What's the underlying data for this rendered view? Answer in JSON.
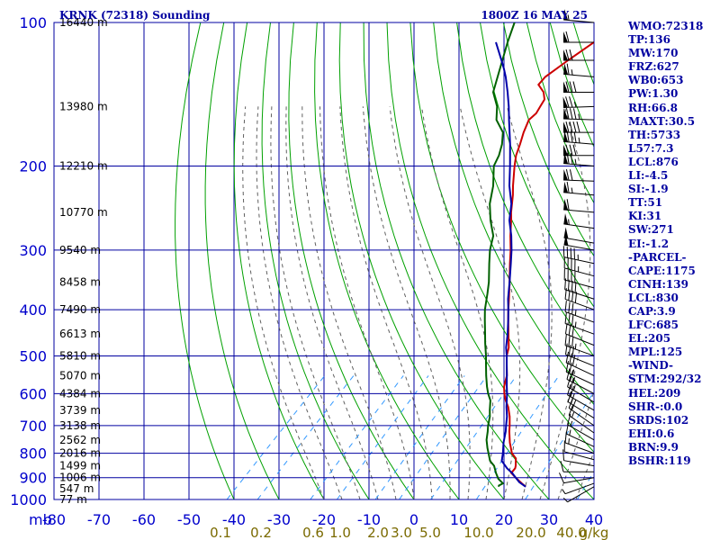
{
  "chart_data": {
    "type": "skew-t log-p sounding",
    "title": "KRNK (72318) Sounding",
    "time": "1800Z 16 MAY 25",
    "pressure_axis_label": "mb",
    "pressure_ticks": [
      100,
      200,
      300,
      400,
      500,
      600,
      700,
      800,
      900,
      1000
    ],
    "pressure_range": [
      100,
      1000
    ],
    "temperature_ticks": [
      -80,
      -70,
      -60,
      -50,
      -40,
      -30,
      -20,
      -10,
      0,
      10,
      20,
      30,
      40
    ],
    "temperature_tick_labels": [
      "-80",
      "-70",
      "-60",
      "-50",
      "-40",
      "-30",
      "-20",
      "-10",
      "0",
      "10",
      "20",
      "30",
      "40"
    ],
    "mixing_ratio_ticks": [
      0.1,
      0.2,
      0.6,
      1.0,
      2.0,
      3.0,
      5.0,
      10.0,
      20.0,
      40.0
    ],
    "mixing_ratio_labels": [
      "0.1",
      "0.2",
      "0.6",
      "1.0",
      "2.0",
      "3.0",
      "5.0",
      "10.0",
      "20.0",
      "40.0"
    ],
    "mixing_ratio_unit": "g/kg",
    "height_labels": [
      {
        "p": 100,
        "label": "16440 m"
      },
      {
        "p": 150,
        "label": "13980 m"
      },
      {
        "p": 200,
        "label": "12210 m"
      },
      {
        "p": 250,
        "label": "10770 m"
      },
      {
        "p": 300,
        "label": "9540 m"
      },
      {
        "p": 350,
        "label": "8458 m"
      },
      {
        "p": 400,
        "label": "7490 m"
      },
      {
        "p": 450,
        "label": "6613 m"
      },
      {
        "p": 500,
        "label": "5810 m"
      },
      {
        "p": 550,
        "label": "5070 m"
      },
      {
        "p": 600,
        "label": "4384 m"
      },
      {
        "p": 650,
        "label": "3739 m"
      },
      {
        "p": 700,
        "label": "3138 m"
      },
      {
        "p": 750,
        "label": "2562 m"
      },
      {
        "p": 800,
        "label": "2016 m"
      },
      {
        "p": 850,
        "label": "1499 m"
      },
      {
        "p": 900,
        "label": "1006 m"
      },
      {
        "p": 950,
        "label": "547 m"
      },
      {
        "p": 1000,
        "label": "77 m"
      }
    ],
    "series": [
      {
        "name": "",
        "color": "#cc0000",
        "points": [
          [
            940,
            22.0
          ],
          [
            925,
            20.4
          ],
          [
            900,
            17.8
          ],
          [
            880,
            15.8
          ],
          [
            860,
            15.6
          ],
          [
            850,
            15.2
          ],
          [
            820,
            13.6
          ],
          [
            800,
            11.6
          ],
          [
            760,
            8.8
          ],
          [
            720,
            6.2
          ],
          [
            700,
            5.0
          ],
          [
            670,
            3.0
          ],
          [
            640,
            0.6
          ],
          [
            620,
            -1.4
          ],
          [
            600,
            -3.2
          ],
          [
            580,
            -4.8
          ],
          [
            560,
            -6.0
          ],
          [
            550,
            -6.6
          ],
          [
            520,
            -9.2
          ],
          [
            500,
            -11.0
          ],
          [
            480,
            -12.4
          ],
          [
            450,
            -15.4
          ],
          [
            420,
            -18.6
          ],
          [
            400,
            -20.8
          ],
          [
            380,
            -23.0
          ],
          [
            350,
            -26.6
          ],
          [
            320,
            -30.6
          ],
          [
            300,
            -33.4
          ],
          [
            280,
            -36.6
          ],
          [
            260,
            -39.8
          ],
          [
            250,
            -41.6
          ],
          [
            230,
            -45.0
          ],
          [
            220,
            -47.0
          ],
          [
            200,
            -51.0
          ],
          [
            190,
            -53.0
          ],
          [
            180,
            -54.6
          ],
          [
            170,
            -56.4
          ],
          [
            160,
            -58.0
          ],
          [
            155,
            -57.8
          ],
          [
            150,
            -58.4
          ],
          [
            145,
            -59.0
          ],
          [
            140,
            -60.8
          ],
          [
            135,
            -63.6
          ],
          [
            130,
            -63.8
          ],
          [
            120,
            -62.4
          ],
          [
            110,
            -60.6
          ],
          [
            100,
            -58.8
          ]
        ]
      },
      {
        "name": "",
        "color": "#006000",
        "points": [
          [
            940,
            16.0
          ],
          [
            935,
            15.8
          ],
          [
            925,
            16.2
          ],
          [
            905,
            14.2
          ],
          [
            880,
            12.4
          ],
          [
            850,
            10.4
          ],
          [
            830,
            8.4
          ],
          [
            800,
            6.4
          ],
          [
            780,
            5.0
          ],
          [
            750,
            3.0
          ],
          [
            720,
            1.4
          ],
          [
            700,
            0.2
          ],
          [
            670,
            -1.4
          ],
          [
            650,
            -2.8
          ],
          [
            620,
            -4.8
          ],
          [
            600,
            -6.8
          ],
          [
            580,
            -8.6
          ],
          [
            550,
            -11.2
          ],
          [
            520,
            -13.8
          ],
          [
            500,
            -15.6
          ],
          [
            470,
            -18.6
          ],
          [
            450,
            -20.6
          ],
          [
            420,
            -23.8
          ],
          [
            400,
            -26.0
          ],
          [
            370,
            -29.0
          ],
          [
            350,
            -31.2
          ],
          [
            320,
            -35.2
          ],
          [
            300,
            -38.0
          ],
          [
            280,
            -40.4
          ],
          [
            260,
            -44.4
          ],
          [
            240,
            -48.2
          ],
          [
            220,
            -51.4
          ],
          [
            200,
            -55.6
          ],
          [
            190,
            -56.8
          ],
          [
            180,
            -58.6
          ],
          [
            170,
            -61.0
          ],
          [
            160,
            -65.2
          ],
          [
            150,
            -68.0
          ],
          [
            140,
            -72.0
          ],
          [
            130,
            -74.4
          ],
          [
            120,
            -77.0
          ],
          [
            110,
            -79.8
          ],
          [
            100,
            -82.6
          ]
        ]
      },
      {
        "name": "",
        "color": "#0000aa",
        "points": [
          [
            940,
            22.0
          ],
          [
            920,
            19.6
          ],
          [
            900,
            17.8
          ],
          [
            880,
            16.0
          ],
          [
            860,
            13.8
          ],
          [
            830,
            11.0
          ],
          [
            800,
            9.6
          ],
          [
            760,
            7.4
          ],
          [
            720,
            5.4
          ],
          [
            700,
            4.2
          ],
          [
            670,
            2.4
          ],
          [
            640,
            0.2
          ],
          [
            600,
            -2.6
          ],
          [
            580,
            -4.2
          ],
          [
            560,
            -5.8
          ],
          [
            550,
            -6.6
          ],
          [
            520,
            -9.2
          ],
          [
            500,
            -11.0
          ],
          [
            480,
            -13.0
          ],
          [
            450,
            -15.6
          ],
          [
            420,
            -18.6
          ],
          [
            400,
            -20.8
          ],
          [
            380,
            -23.2
          ],
          [
            350,
            -26.6
          ],
          [
            320,
            -30.4
          ],
          [
            300,
            -33.2
          ],
          [
            280,
            -36.4
          ],
          [
            260,
            -40.2
          ],
          [
            240,
            -43.4
          ],
          [
            220,
            -47.8
          ],
          [
            200,
            -52.0
          ],
          [
            180,
            -56.8
          ],
          [
            160,
            -62.4
          ],
          [
            150,
            -65.4
          ],
          [
            140,
            -68.8
          ],
          [
            130,
            -72.6
          ],
          [
            125,
            -74.8
          ],
          [
            120,
            -77.2
          ],
          [
            110,
            -82.4
          ]
        ]
      }
    ],
    "wind_barbs": [
      {
        "p": 100,
        "dir": 275,
        "spd": 55
      },
      {
        "p": 110,
        "dir": 270,
        "spd": 60
      },
      {
        "p": 120,
        "dir": 270,
        "spd": 70
      },
      {
        "p": 130,
        "dir": 275,
        "spd": 65
      },
      {
        "p": 140,
        "dir": 270,
        "spd": 80
      },
      {
        "p": 150,
        "dir": 268,
        "spd": 75
      },
      {
        "p": 160,
        "dir": 272,
        "spd": 85
      },
      {
        "p": 170,
        "dir": 270,
        "spd": 90
      },
      {
        "p": 180,
        "dir": 275,
        "spd": 85
      },
      {
        "p": 190,
        "dir": 270,
        "spd": 80
      },
      {
        "p": 200,
        "dir": 275,
        "spd": 75
      },
      {
        "p": 215,
        "dir": 272,
        "spd": 70
      },
      {
        "p": 230,
        "dir": 275,
        "spd": 65
      },
      {
        "p": 250,
        "dir": 275,
        "spd": 60
      },
      {
        "p": 270,
        "dir": 278,
        "spd": 55
      },
      {
        "p": 290,
        "dir": 280,
        "spd": 50
      },
      {
        "p": 300,
        "dir": 280,
        "spd": 50
      },
      {
        "p": 320,
        "dir": 282,
        "spd": 45
      },
      {
        "p": 340,
        "dir": 285,
        "spd": 45
      },
      {
        "p": 360,
        "dir": 285,
        "spd": 40
      },
      {
        "p": 380,
        "dir": 288,
        "spd": 40
      },
      {
        "p": 400,
        "dir": 290,
        "spd": 40
      },
      {
        "p": 425,
        "dir": 290,
        "spd": 35
      },
      {
        "p": 450,
        "dir": 290,
        "spd": 35
      },
      {
        "p": 475,
        "dir": 292,
        "spd": 30
      },
      {
        "p": 500,
        "dir": 290,
        "spd": 35
      },
      {
        "p": 525,
        "dir": 292,
        "spd": 30
      },
      {
        "p": 550,
        "dir": 295,
        "spd": 30
      },
      {
        "p": 575,
        "dir": 295,
        "spd": 25
      },
      {
        "p": 600,
        "dir": 298,
        "spd": 25
      },
      {
        "p": 625,
        "dir": 300,
        "spd": 25
      },
      {
        "p": 650,
        "dir": 300,
        "spd": 20
      },
      {
        "p": 675,
        "dir": 302,
        "spd": 20
      },
      {
        "p": 700,
        "dir": 305,
        "spd": 20
      },
      {
        "p": 725,
        "dir": 305,
        "spd": 15
      },
      {
        "p": 750,
        "dir": 300,
        "spd": 15
      },
      {
        "p": 775,
        "dir": 295,
        "spd": 15
      },
      {
        "p": 800,
        "dir": 290,
        "spd": 15
      },
      {
        "p": 825,
        "dir": 285,
        "spd": 10
      },
      {
        "p": 850,
        "dir": 280,
        "spd": 10
      },
      {
        "p": 875,
        "dir": 270,
        "spd": 10
      },
      {
        "p": 900,
        "dir": 260,
        "spd": 10
      },
      {
        "p": 925,
        "dir": 250,
        "spd": 5
      },
      {
        "p": 940,
        "dir": 240,
        "spd": 5
      }
    ]
  },
  "indices": [
    "WMO:72318",
    "TP:136",
    "MW:170",
    "FRZ:627",
    "WB0:653",
    "PW:1.30",
    "RH:66.8",
    "MAXT:30.5",
    "TH:5733",
    "L57:7.3",
    "LCL:876",
    "LI:-4.5",
    "SI:-1.9",
    "TT:51",
    "KI:31",
    "SW:271",
    "EI:-1.2",
    "-PARCEL-",
    "CAPE:1175",
    "CINH:139",
    "LCL:830",
    "CAP:3.9",
    "LFC:685",
    "EL:205",
    "MPL:125",
    "-WIND-",
    "STM:292/32",
    "HEL:209",
    "SHR-:0.0",
    "SRDS:102",
    "EHI:0.6",
    "BRN:9.9",
    "BSHR:119"
  ],
  "colors": {
    "isobar": "#0000a0",
    "isotherm": "#0000a0",
    "dry_adiabat": "#00a000",
    "moist_adiabat": "#606060",
    "mixing_ratio": "#3399ff",
    "temperature": "#cc0000",
    "dewpoint": "#006000",
    "parcel": "#0000aa",
    "barb": "#000000"
  }
}
